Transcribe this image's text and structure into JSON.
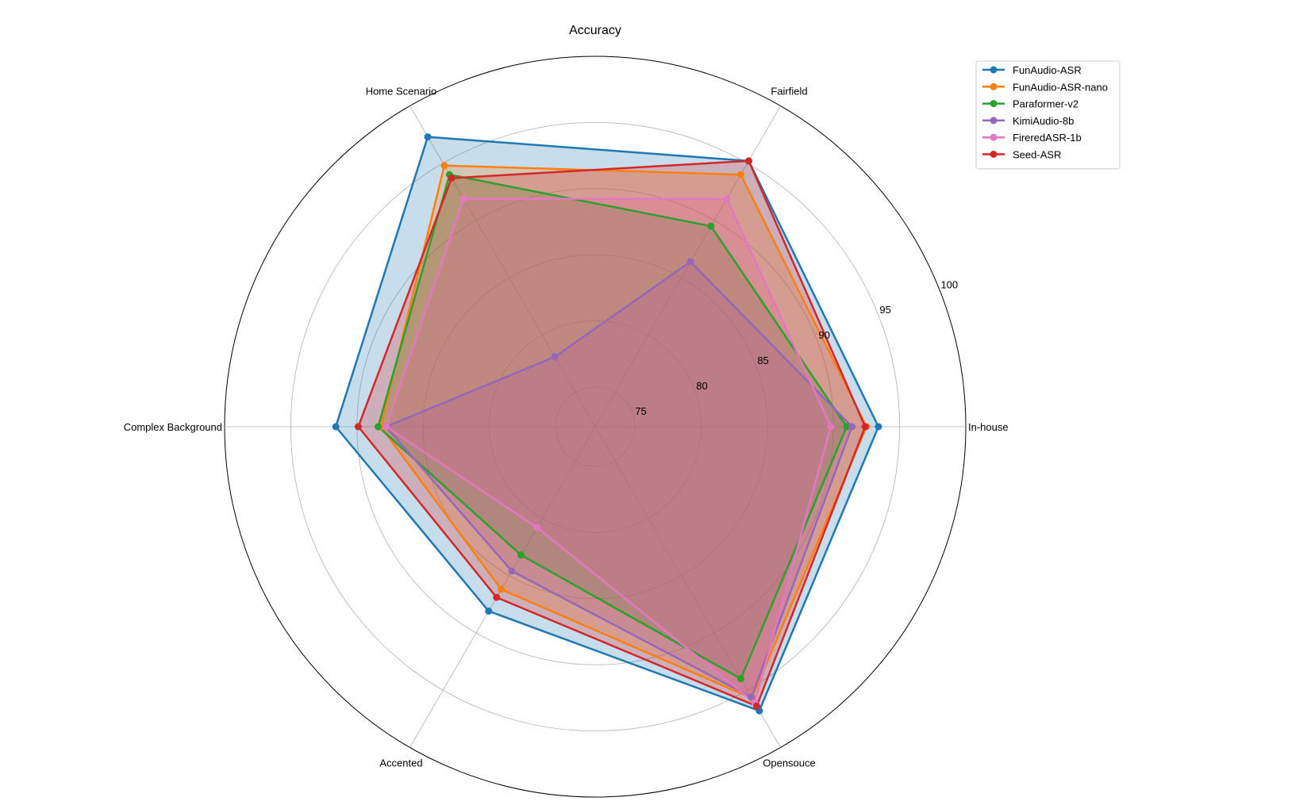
{
  "chart_data": {
    "type": "radar",
    "title": "Accuracy",
    "categories": [
      "In-house",
      "Fairfield",
      "Home Scenario",
      "Complex Background",
      "Accented",
      "Opensouce"
    ],
    "rlim": [
      72,
      100
    ],
    "rticks": [
      75,
      80,
      85,
      90,
      95,
      100
    ],
    "grid": true,
    "legend_position": "top-right",
    "series": [
      {
        "name": "FunAudio-ASR",
        "color": "#1f77b4",
        "values": [
          93.4,
          95.2,
          97.3,
          91.6,
          88.1,
          96.8
        ]
      },
      {
        "name": "FunAudio-ASR-nano",
        "color": "#ff7f0e",
        "values": [
          92.5,
          94.0,
          94.8,
          88.2,
          86.2,
          95.7
        ]
      },
      {
        "name": "Paraformer-v2",
        "color": "#2ca02c",
        "values": [
          91.0,
          89.5,
          94.0,
          88.4,
          83.2,
          94.0
        ]
      },
      {
        "name": "KimiAudio-8b",
        "color": "#9467bd",
        "values": [
          91.4,
          86.4,
          78.1,
          87.8,
          84.6,
          95.6
        ]
      },
      {
        "name": "FireredASR-1b",
        "color": "#e377c2",
        "values": [
          89.8,
          91.9,
          91.9,
          87.8,
          80.8,
          96.1
        ]
      },
      {
        "name": "Seed-ASR",
        "color": "#d62728",
        "values": [
          92.4,
          95.2,
          93.7,
          89.9,
          86.9,
          96.4
        ]
      }
    ]
  }
}
